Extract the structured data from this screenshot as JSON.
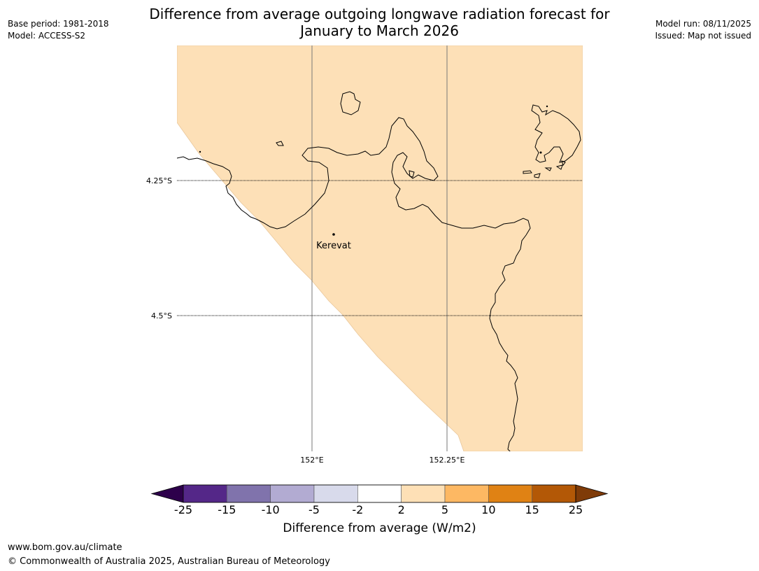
{
  "title": {
    "line1": "Difference from average outgoing longwave radiation forecast for",
    "line2": "January to March 2026"
  },
  "meta_left": {
    "base_period": "Base period: 1981-2018",
    "model": "Model: ACCESS-S2"
  },
  "meta_right": {
    "model_run": "Model run: 08/11/2025",
    "issued": "Issued: Map not issued"
  },
  "map": {
    "land_fill": "#fde0b7",
    "coast_color": "#000000",
    "latitudes": [
      {
        "label": "4.25°S"
      },
      {
        "label": "4.5°S"
      }
    ],
    "longitudes": [
      {
        "label": "152°E"
      },
      {
        "label": "152.25°E"
      }
    ],
    "town": {
      "name": "Kerevat"
    }
  },
  "colorbar": {
    "label": "Difference from average (W/m2)",
    "ticks": [
      "-25",
      "-15",
      "-10",
      "-5",
      "-2",
      "2",
      "5",
      "10",
      "15",
      "25"
    ],
    "colors": [
      "#542788",
      "#8073ac",
      "#b2abd2",
      "#d8daeb",
      "#ffffff",
      "#fee0b6",
      "#fdb863",
      "#e08214",
      "#b35806"
    ],
    "under_color": "#2d004b",
    "over_color": "#7f3b08"
  },
  "footer": {
    "url": "www.bom.gov.au/climate",
    "copyright": "© Commonwealth of Australia 2025, Australian Bureau of Meteorology"
  }
}
